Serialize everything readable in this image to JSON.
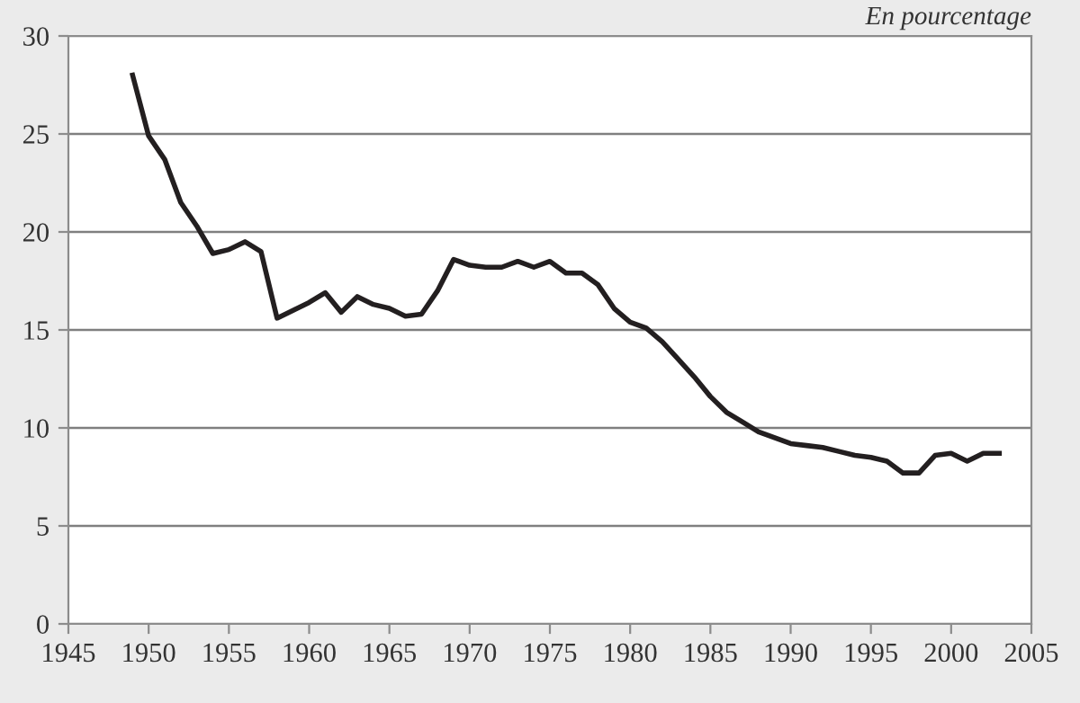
{
  "chart_data": {
    "type": "line",
    "annotations": [
      "En pourcentage"
    ],
    "x": [
      1949,
      1950,
      1951,
      1952,
      1953,
      1954,
      1955,
      1956,
      1957,
      1958,
      1959,
      1960,
      1961,
      1962,
      1963,
      1964,
      1965,
      1966,
      1967,
      1968,
      1969,
      1970,
      1971,
      1972,
      1973,
      1974,
      1975,
      1976,
      1977,
      1978,
      1979,
      1980,
      1981,
      1982,
      1983,
      1984,
      1985,
      1986,
      1987,
      1988,
      1989,
      1990,
      1991,
      1992,
      1993,
      1994,
      1995,
      1996,
      1997,
      1998,
      1999,
      2000,
      2001,
      2002,
      2003
    ],
    "series": [
      {
        "color": "#231f20",
        "values": [
          28,
          24.9,
          23.7,
          21.5,
          20.3,
          18.9,
          19.1,
          19.5,
          19.0,
          15.6,
          16.0,
          16.4,
          16.9,
          15.9,
          16.7,
          16.3,
          16.1,
          15.7,
          15.8,
          17.0,
          18.6,
          18.3,
          18.2,
          18.2,
          18.5,
          18.2,
          18.5,
          17.9,
          17.9,
          17.3,
          16.1,
          15.4,
          15.1,
          14.4,
          13.5,
          12.6,
          11.6,
          10.8,
          10.3,
          9.8,
          9.5,
          9.2,
          9.1,
          9.0,
          8.8,
          8.6,
          8.5,
          8.3,
          7.7,
          7.7,
          8.6,
          8.7,
          8.3,
          8.7,
          8.7
        ]
      }
    ],
    "xlim": [
      1945,
      2005
    ],
    "xticks": [
      1945,
      1950,
      1955,
      1960,
      1965,
      1970,
      1975,
      1980,
      1985,
      1990,
      1995,
      2000,
      2005
    ],
    "ylim": [
      0,
      30
    ],
    "yticks": [
      0,
      5,
      10,
      15,
      20,
      25,
      30
    ],
    "grid": "y",
    "marker": "none",
    "line_style": "solid"
  }
}
